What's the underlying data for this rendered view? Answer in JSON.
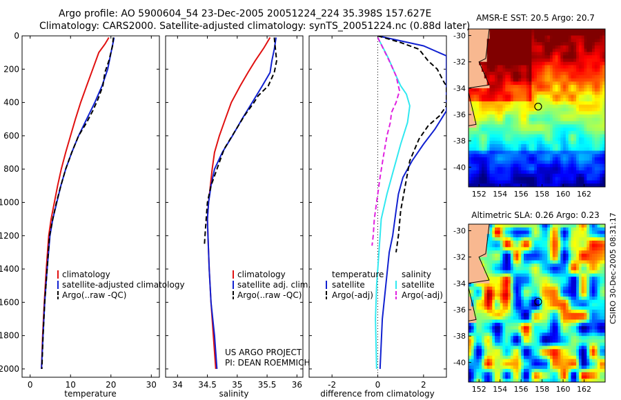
{
  "header": {
    "line1": "Argo profile: AO 5900604_54 23-Dec-2005 20051224_224 35.398S 157.627E",
    "line2": "Climatology: CARS2000. Satellite-adjusted climatology: synTS_20051224.nc (0.88d later)"
  },
  "footer": {
    "project": "US ARGO PROJECT",
    "pi": "PI: DEAN ROEMMICH",
    "stamp": "CSIRO 30-Dec-2005 08:31:17"
  },
  "colors": {
    "climatology": "#e01010",
    "satellite": "#1020d0",
    "argo": "#000000",
    "satellite_salinity": "#30e8f0",
    "argo_salinity": "#e020e0",
    "land": "#f8b890"
  },
  "chart_data": [
    {
      "type": "line",
      "id": "temperature",
      "xlabel": "temperature",
      "ylabel": "",
      "xlim": [
        -2,
        32
      ],
      "ylim": [
        2050,
        0
      ],
      "xticks": [
        0,
        10,
        20,
        30
      ],
      "yticks": [
        0,
        200,
        400,
        600,
        800,
        1000,
        1200,
        1400,
        1600,
        1800,
        2000
      ],
      "legend": [
        "climatology",
        "satellite-adjusted climatology",
        "Argo(..raw -QC)"
      ],
      "series": [
        {
          "name": "climatology",
          "style": "solid",
          "color": "#e01010",
          "points": [
            [
              19.5,
              10
            ],
            [
              18.5,
              50
            ],
            [
              17.0,
              100
            ],
            [
              15.5,
              200
            ],
            [
              14.0,
              300
            ],
            [
              12.5,
              400
            ],
            [
              11.2,
              500
            ],
            [
              10.0,
              600
            ],
            [
              8.8,
              700
            ],
            [
              7.7,
              800
            ],
            [
              6.8,
              900
            ],
            [
              6.0,
              1000
            ],
            [
              5.2,
              1100
            ],
            [
              4.6,
              1200
            ],
            [
              4.0,
              1400
            ],
            [
              3.5,
              1600
            ],
            [
              3.1,
              1800
            ],
            [
              2.8,
              2000
            ]
          ]
        },
        {
          "name": "satellite-adjusted climatology",
          "style": "solid",
          "color": "#1020d0",
          "points": [
            [
              20.8,
              10
            ],
            [
              20.2,
              80
            ],
            [
              19.2,
              200
            ],
            [
              17.8,
              300
            ],
            [
              16.0,
              400
            ],
            [
              14.0,
              500
            ],
            [
              12.0,
              600
            ],
            [
              10.3,
              700
            ],
            [
              8.8,
              800
            ],
            [
              7.6,
              900
            ],
            [
              6.6,
              1000
            ],
            [
              5.6,
              1100
            ],
            [
              4.9,
              1200
            ],
            [
              4.2,
              1400
            ],
            [
              3.6,
              1600
            ],
            [
              3.2,
              1800
            ],
            [
              2.8,
              2000
            ]
          ]
        },
        {
          "name": "Argo(..raw -QC)",
          "style": "dash",
          "color": "#000000",
          "points": [
            [
              20.6,
              10
            ],
            [
              20.4,
              60
            ],
            [
              19.5,
              150
            ],
            [
              18.5,
              220
            ],
            [
              18.0,
              300
            ],
            [
              16.8,
              380
            ],
            [
              15.5,
              450
            ],
            [
              14.0,
              520
            ],
            [
              12.0,
              600
            ],
            [
              10.3,
              700
            ],
            [
              8.8,
              800
            ],
            [
              7.6,
              900
            ],
            [
              6.5,
              1000
            ],
            [
              5.6,
              1100
            ],
            [
              4.8,
              1200
            ],
            [
              4.2,
              1400
            ],
            [
              3.6,
              1600
            ],
            [
              3.2,
              1800
            ],
            [
              2.9,
              2000
            ]
          ]
        }
      ]
    },
    {
      "type": "line",
      "id": "salinity",
      "xlabel": "salinity",
      "ylabel": "",
      "xlim": [
        33.8,
        36.1
      ],
      "ylim": [
        2050,
        0
      ],
      "xticks": [
        34,
        34.5,
        35,
        35.5,
        36
      ],
      "legend": [
        "climatology",
        "satellite adj. clim.",
        "Argo(..raw -QC)"
      ],
      "series": [
        {
          "name": "climatology",
          "style": "solid",
          "color": "#e01010",
          "points": [
            [
              35.55,
              10
            ],
            [
              35.45,
              70
            ],
            [
              35.3,
              150
            ],
            [
              35.18,
              220
            ],
            [
              35.05,
              300
            ],
            [
              34.9,
              400
            ],
            [
              34.8,
              500
            ],
            [
              34.7,
              600
            ],
            [
              34.62,
              700
            ],
            [
              34.58,
              800
            ],
            [
              34.55,
              900
            ],
            [
              34.52,
              1000
            ],
            [
              34.5,
              1100
            ],
            [
              34.51,
              1200
            ],
            [
              34.53,
              1400
            ],
            [
              34.56,
              1600
            ],
            [
              34.6,
              1800
            ],
            [
              34.64,
              2000
            ]
          ]
        },
        {
          "name": "satellite adj. clim.",
          "style": "solid",
          "color": "#1020d0",
          "points": [
            [
              35.65,
              10
            ],
            [
              35.62,
              80
            ],
            [
              35.58,
              150
            ],
            [
              35.55,
              220
            ],
            [
              35.42,
              300
            ],
            [
              35.25,
              400
            ],
            [
              35.08,
              500
            ],
            [
              34.92,
              600
            ],
            [
              34.75,
              700
            ],
            [
              34.62,
              800
            ],
            [
              34.56,
              900
            ],
            [
              34.52,
              1000
            ],
            [
              34.5,
              1100
            ],
            [
              34.51,
              1200
            ],
            [
              34.53,
              1400
            ],
            [
              34.56,
              1600
            ],
            [
              34.62,
              1800
            ],
            [
              34.66,
              2000
            ]
          ]
        },
        {
          "name": "Argo(..raw -QC)",
          "style": "dash",
          "color": "#000000",
          "points": [
            [
              35.62,
              10
            ],
            [
              35.64,
              80
            ],
            [
              35.66,
              150
            ],
            [
              35.62,
              220
            ],
            [
              35.52,
              300
            ],
            [
              35.35,
              360
            ],
            [
              35.28,
              400
            ],
            [
              35.12,
              480
            ],
            [
              34.95,
              580
            ],
            [
              34.78,
              680
            ],
            [
              34.66,
              800
            ],
            [
              34.56,
              900
            ],
            [
              34.5,
              1000
            ],
            [
              34.48,
              1100
            ],
            [
              34.46,
              1200
            ],
            [
              34.45,
              1260
            ]
          ]
        }
      ]
    },
    {
      "type": "line",
      "id": "difference",
      "xlabel": "difference from climatology",
      "ylabel": "",
      "xlim": [
        -3,
        3
      ],
      "ylim": [
        2050,
        0
      ],
      "xticks": [
        -2,
        0,
        2
      ],
      "legend": [
        "temperature",
        "satellite",
        "Argo(-adj)",
        "salinity",
        "satellite",
        "Argo(-adj)"
      ],
      "series": [
        {
          "name": "temperature satellite",
          "style": "solid",
          "color": "#1020d0",
          "points": [
            [
              0,
              0
            ],
            [
              2,
              60
            ],
            [
              3,
              120
            ],
            [
              3,
              450
            ],
            [
              2.5,
              560
            ],
            [
              2.0,
              650
            ],
            [
              1.5,
              750
            ],
            [
              1.1,
              850
            ],
            [
              0.9,
              950
            ],
            [
              0.8,
              1050
            ],
            [
              0.65,
              1200
            ],
            [
              0.5,
              1300
            ],
            [
              0.35,
              1500
            ],
            [
              0.2,
              1700
            ],
            [
              0.1,
              2000
            ]
          ]
        },
        {
          "name": "temperature Argo(-adj)",
          "style": "dash",
          "color": "#000000",
          "points": [
            [
              0,
              0
            ],
            [
              1.0,
              40
            ],
            [
              1.8,
              80
            ],
            [
              2.2,
              150
            ],
            [
              2.6,
              200
            ],
            [
              2.9,
              280
            ],
            [
              3,
              300
            ],
            [
              3,
              420
            ],
            [
              2.7,
              480
            ],
            [
              2.2,
              540
            ],
            [
              1.8,
              620
            ],
            [
              1.4,
              750
            ],
            [
              1.2,
              900
            ],
            [
              1.0,
              1050
            ],
            [
              0.9,
              1200
            ],
            [
              0.8,
              1300
            ]
          ]
        },
        {
          "name": "salinity satellite",
          "style": "solid",
          "color": "#30e8f0",
          "points": [
            [
              0,
              10
            ],
            [
              0.45,
              130
            ],
            [
              0.8,
              240
            ],
            [
              1.0,
              300
            ],
            [
              1.25,
              350
            ],
            [
              1.4,
              420
            ],
            [
              1.3,
              520
            ],
            [
              1.0,
              650
            ],
            [
              0.7,
              800
            ],
            [
              0.4,
              950
            ],
            [
              0.15,
              1100
            ],
            [
              0.05,
              1300
            ],
            [
              -0.05,
              1500
            ],
            [
              -0.1,
              1700
            ],
            [
              -0.05,
              2000
            ]
          ]
        },
        {
          "name": "salinity Argo(-adj)",
          "style": "dash",
          "color": "#e020e0",
          "points": [
            [
              0,
              10
            ],
            [
              0.5,
              150
            ],
            [
              0.8,
              240
            ],
            [
              0.95,
              330
            ],
            [
              0.8,
              400
            ],
            [
              0.6,
              460
            ],
            [
              0.55,
              520
            ],
            [
              0.4,
              600
            ],
            [
              0.25,
              720
            ],
            [
              0.1,
              850
            ],
            [
              -0.05,
              1000
            ],
            [
              -0.15,
              1100
            ],
            [
              -0.2,
              1200
            ],
            [
              -0.25,
              1260
            ]
          ]
        }
      ]
    }
  ],
  "sst_map": {
    "title": "AMSR-E SST: 20.5 Argo: 20.7",
    "xticks": [
      "152",
      "154",
      "156",
      "158",
      "160",
      "162"
    ],
    "yticks": [
      "-30",
      "-32",
      "-34",
      "-36",
      "-38",
      "-40"
    ],
    "lon_range": [
      151,
      164
    ],
    "lat_range": [
      -41.5,
      -29.5
    ],
    "argo_position": [
      157.627,
      -35.398
    ]
  },
  "sla_map": {
    "title": "Altimetric SLA: 0.26 Argo: 0.23",
    "xticks": [
      "152",
      "154",
      "156",
      "158",
      "160",
      "162"
    ],
    "yticks": [
      "-30",
      "-32",
      "-34",
      "-36",
      "-38",
      "-40"
    ],
    "lon_range": [
      151,
      164
    ],
    "lat_range": [
      -41.5,
      -29.5
    ],
    "argo_position": [
      157.627,
      -35.398
    ]
  }
}
